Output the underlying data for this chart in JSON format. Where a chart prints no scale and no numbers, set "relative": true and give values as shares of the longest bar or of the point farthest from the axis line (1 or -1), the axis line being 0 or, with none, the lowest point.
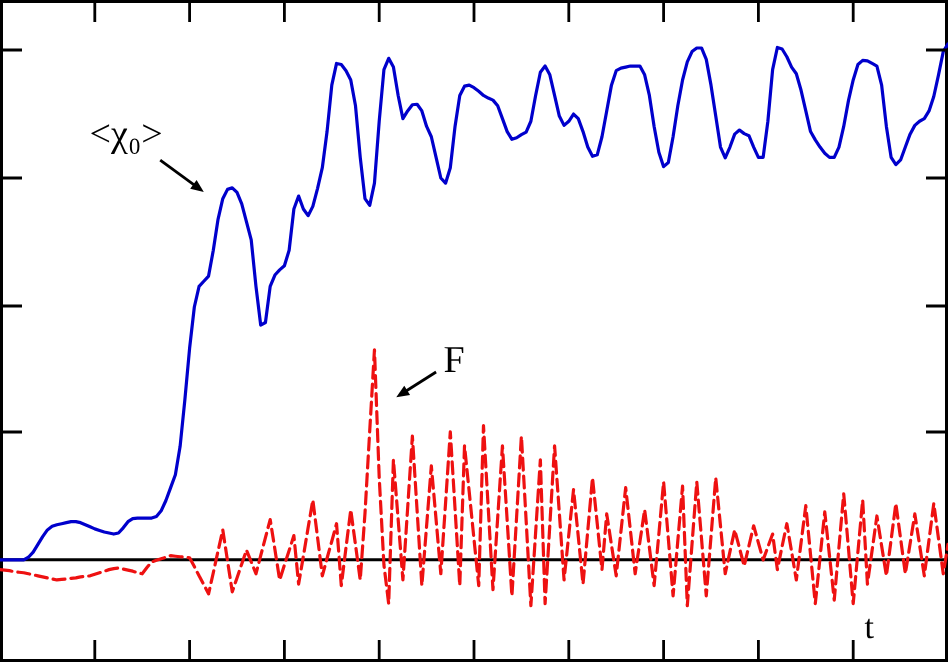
{
  "chart_data": {
    "type": "line",
    "relative": true,
    "xlabel": "t",
    "legend": false,
    "marker": "none",
    "annotations": [
      "<χ₀>",
      "F"
    ],
    "categories": [
      null,
      null,
      null,
      null,
      null,
      null,
      null,
      null,
      null,
      null,
      null,
      null,
      null,
      null,
      null,
      null,
      null,
      null,
      null,
      null,
      null,
      null,
      null,
      null,
      null,
      null,
      null,
      null,
      null,
      null,
      null,
      null,
      null,
      null,
      null,
      null,
      null,
      null,
      null,
      null,
      null,
      null,
      null,
      null,
      null,
      null,
      null,
      null,
      null,
      null,
      null,
      null,
      null,
      null,
      null,
      null,
      null,
      null,
      null,
      null,
      null,
      null,
      null,
      null,
      null,
      null,
      null,
      null,
      null,
      null,
      null,
      null,
      null,
      null,
      null,
      null,
      null,
      null,
      null,
      null,
      null,
      null,
      null,
      null,
      null,
      null,
      null,
      null,
      null,
      null,
      null,
      null,
      null,
      null,
      null,
      null,
      null,
      null,
      null,
      null,
      null,
      null,
      null,
      null,
      null,
      null,
      null,
      null,
      null,
      null,
      null,
      null,
      null,
      null,
      null,
      null,
      null,
      null,
      null,
      null,
      null,
      null,
      null,
      null,
      null,
      null,
      null,
      null,
      null,
      null,
      null,
      null,
      null,
      null,
      null,
      null,
      null,
      null,
      null,
      null,
      null,
      null,
      null,
      null,
      null,
      null,
      null,
      null,
      null,
      null,
      null,
      null,
      null,
      null,
      null,
      null,
      null,
      null,
      null,
      null,
      null,
      null,
      null,
      null,
      null,
      null,
      null,
      null,
      null,
      null,
      null,
      null,
      null,
      null,
      null,
      null,
      null,
      null,
      null,
      null,
      null,
      null,
      null,
      null,
      null,
      null,
      null,
      null,
      null,
      null,
      null,
      null,
      null,
      null,
      null,
      null,
      null,
      null,
      null,
      null,
      null
    ],
    "series": [
      {
        "color": "#0000cc",
        "line_style": "solid",
        "values": [
          0,
          0,
          0,
          0,
          0,
          0,
          0.005,
          0.015,
          0.03,
          0.045,
          0.058,
          0.065,
          0.068,
          0.07,
          0.072,
          0.074,
          0.074,
          0.072,
          0.068,
          0.064,
          0.06,
          0.057,
          0.054,
          0.052,
          0.05,
          0.052,
          0.062,
          0.074,
          0.08,
          0.081,
          0.081,
          0.081,
          0.081,
          0.084,
          0.095,
          0.115,
          0.14,
          0.165,
          0.22,
          0.31,
          0.41,
          0.49,
          0.53,
          0.54,
          0.55,
          0.6,
          0.66,
          0.7,
          0.718,
          0.721,
          0.712,
          0.69,
          0.655,
          0.62,
          0.53,
          0.455,
          0.46,
          0.53,
          0.552,
          0.562,
          0.57,
          0.6,
          0.68,
          0.705,
          0.68,
          0.667,
          0.685,
          0.72,
          0.76,
          0.83,
          0.92,
          0.962,
          0.96,
          0.948,
          0.93,
          0.88,
          0.78,
          0.7,
          0.687,
          0.73,
          0.85,
          0.95,
          0.972,
          0.955,
          0.9,
          0.855,
          0.87,
          0.882,
          0.883,
          0.87,
          0.84,
          0.82,
          0.78,
          0.74,
          0.73,
          0.76,
          0.84,
          0.9,
          0.918,
          0.92,
          0.915,
          0.908,
          0.9,
          0.895,
          0.891,
          0.88,
          0.855,
          0.83,
          0.815,
          0.818,
          0.824,
          0.829,
          0.85,
          0.9,
          0.945,
          0.957,
          0.94,
          0.9,
          0.86,
          0.842,
          0.85,
          0.864,
          0.855,
          0.83,
          0.8,
          0.782,
          0.785,
          0.82,
          0.87,
          0.92,
          0.948,
          0.953,
          0.955,
          0.957,
          0.957,
          0.957,
          0.94,
          0.9,
          0.84,
          0.79,
          0.762,
          0.77,
          0.82,
          0.88,
          0.93,
          0.965,
          0.985,
          0.992,
          0.992,
          0.97,
          0.92,
          0.86,
          0.8,
          0.779,
          0.8,
          0.825,
          0.833,
          0.826,
          0.822,
          0.8,
          0.78,
          0.78,
          0.85,
          0.95,
          0.993,
          0.99,
          0.975,
          0.955,
          0.942,
          0.91,
          0.87,
          0.83,
          0.814,
          0.8,
          0.788,
          0.78,
          0.78,
          0.8,
          0.84,
          0.89,
          0.93,
          0.96,
          0.968,
          0.967,
          0.962,
          0.957,
          0.92,
          0.84,
          0.78,
          0.766,
          0.775,
          0.8,
          0.825,
          0.842,
          0.85,
          0.855,
          0.87,
          0.898,
          0.94,
          0.985,
          1
        ]
      },
      {
        "color": "#ee1111",
        "line_style": "dashed",
        "values": [
          -0.019,
          -0.02,
          -0.021,
          -0.023,
          -0.024,
          -0.025,
          -0.027,
          -0.029,
          -0.031,
          -0.033,
          -0.035,
          -0.037,
          -0.039,
          -0.038,
          -0.037,
          -0.036,
          -0.035,
          -0.033,
          -0.032,
          -0.031,
          -0.028,
          -0.025,
          -0.022,
          -0.019,
          -0.017,
          -0.016,
          -0.018,
          -0.02,
          -0.022,
          -0.025,
          -0.027,
          -0.015,
          -0.004,
          -0.001,
          0.002,
          0.005,
          0.008,
          0.007,
          0.006,
          0.005,
          0.004,
          -0.013,
          -0.031,
          -0.048,
          -0.066,
          -0.025,
          0.017,
          0.058,
          -0.002,
          -0.062,
          -0.035,
          -0.008,
          0.019,
          -0.004,
          -0.027,
          0.008,
          0.043,
          0.078,
          0.02,
          -0.039,
          -0.01,
          0.018,
          0.047,
          -0.047,
          0.007,
          0.062,
          0.116,
          0.043,
          -0.031,
          0.003,
          0.036,
          0.07,
          -0.05,
          0.024,
          0.097,
          0.029,
          -0.039,
          0.09,
          0.25,
          0.407,
          0.16,
          -0.01,
          -0.085,
          0.194,
          0.078,
          -0.039,
          0.1,
          0.24,
          0.095,
          -0.05,
          0.066,
          0.182,
          0.078,
          -0.027,
          0.11,
          0.248,
          0.099,
          -0.05,
          0.221,
          0.131,
          0.04,
          -0.05,
          0.26,
          0.101,
          -0.058,
          0.082,
          0.221,
          0.076,
          -0.07,
          0.085,
          0.24,
          0.076,
          -0.089,
          0.053,
          0.194,
          -0.085,
          0.068,
          0.221,
          0.091,
          -0.039,
          0.049,
          0.136,
          0.045,
          -0.047,
          0.056,
          0.159,
          0.07,
          -0.019,
          0.089,
          0.029,
          -0.031,
          0.055,
          0.14,
          0.057,
          -0.027,
          0.035,
          0.097,
          0.024,
          -0.05,
          0.05,
          0.151,
          0.041,
          -0.07,
          0.037,
          0.143,
          -0.089,
          0.031,
          0.151,
          0.041,
          -0.07,
          0.045,
          0.159,
          0.066,
          -0.027,
          0.016,
          0.058,
          0.023,
          -0.012,
          0.027,
          0.066,
          0.033,
          0,
          0.025,
          0.05,
          -0.019,
          0.026,
          0.07,
          0.016,
          -0.039,
          0.033,
          0.105,
          0.01,
          -0.085,
          0.004,
          0.093,
          0.008,
          -0.078,
          0.025,
          0.128,
          0.022,
          -0.085,
          0.016,
          0.116,
          -0.047,
          0.019,
          0.085,
          0.027,
          -0.031,
          0.039,
          0.109,
          0.041,
          -0.027,
          0.031,
          0.089,
          0.029,
          -0.031,
          0.039,
          0.109,
          0.041,
          -0.027,
          0.03
        ]
      }
    ]
  }
}
